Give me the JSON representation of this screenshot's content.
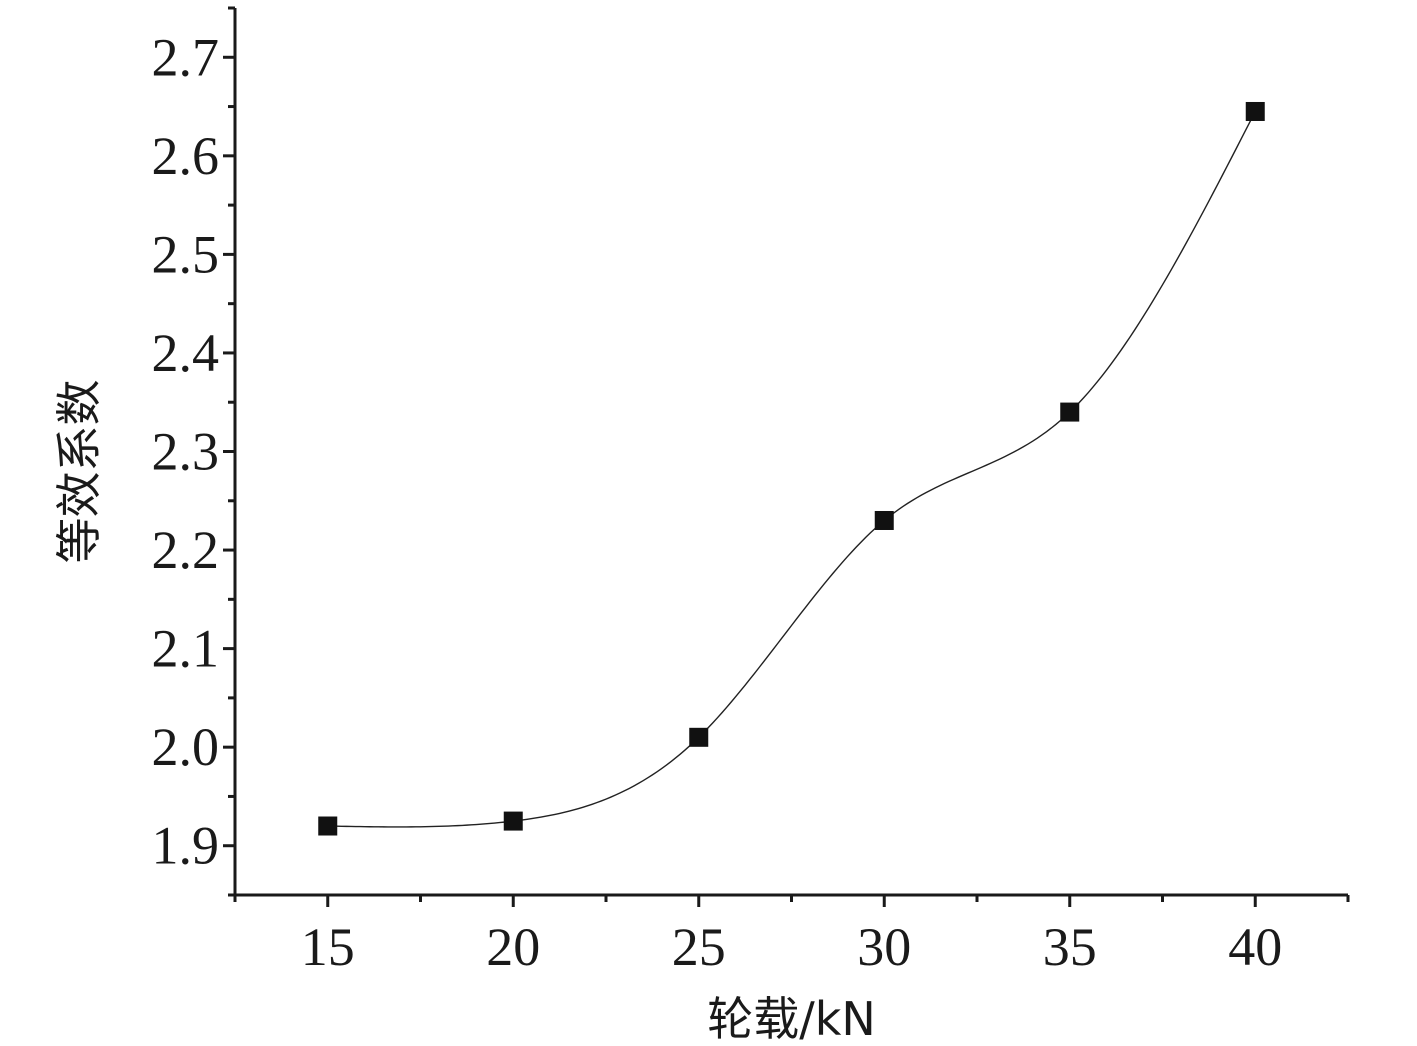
{
  "chart_data": {
    "type": "line",
    "xlabel": "轮载/kN",
    "ylabel": "等效系数",
    "xlim": [
      12.5,
      42.5
    ],
    "ylim": [
      1.85,
      2.75
    ],
    "x_ticks": [
      15,
      20,
      25,
      30,
      35,
      40
    ],
    "x_tick_labels": [
      "15",
      "20",
      "25",
      "30",
      "35",
      "40"
    ],
    "y_ticks": [
      1.9,
      2.0,
      2.1,
      2.2,
      2.3,
      2.4,
      2.5,
      2.6,
      2.7
    ],
    "y_tick_labels": [
      "1.9",
      "2.0",
      "2.1",
      "2.2",
      "2.3",
      "2.4",
      "2.5",
      "2.6",
      "2.7"
    ],
    "grid": false,
    "marker": "square",
    "line": "spline",
    "series": [
      {
        "x": [
          15,
          20,
          25,
          30,
          35,
          40
        ],
        "values": [
          1.92,
          1.925,
          2.01,
          2.23,
          2.34,
          2.645
        ]
      }
    ]
  }
}
